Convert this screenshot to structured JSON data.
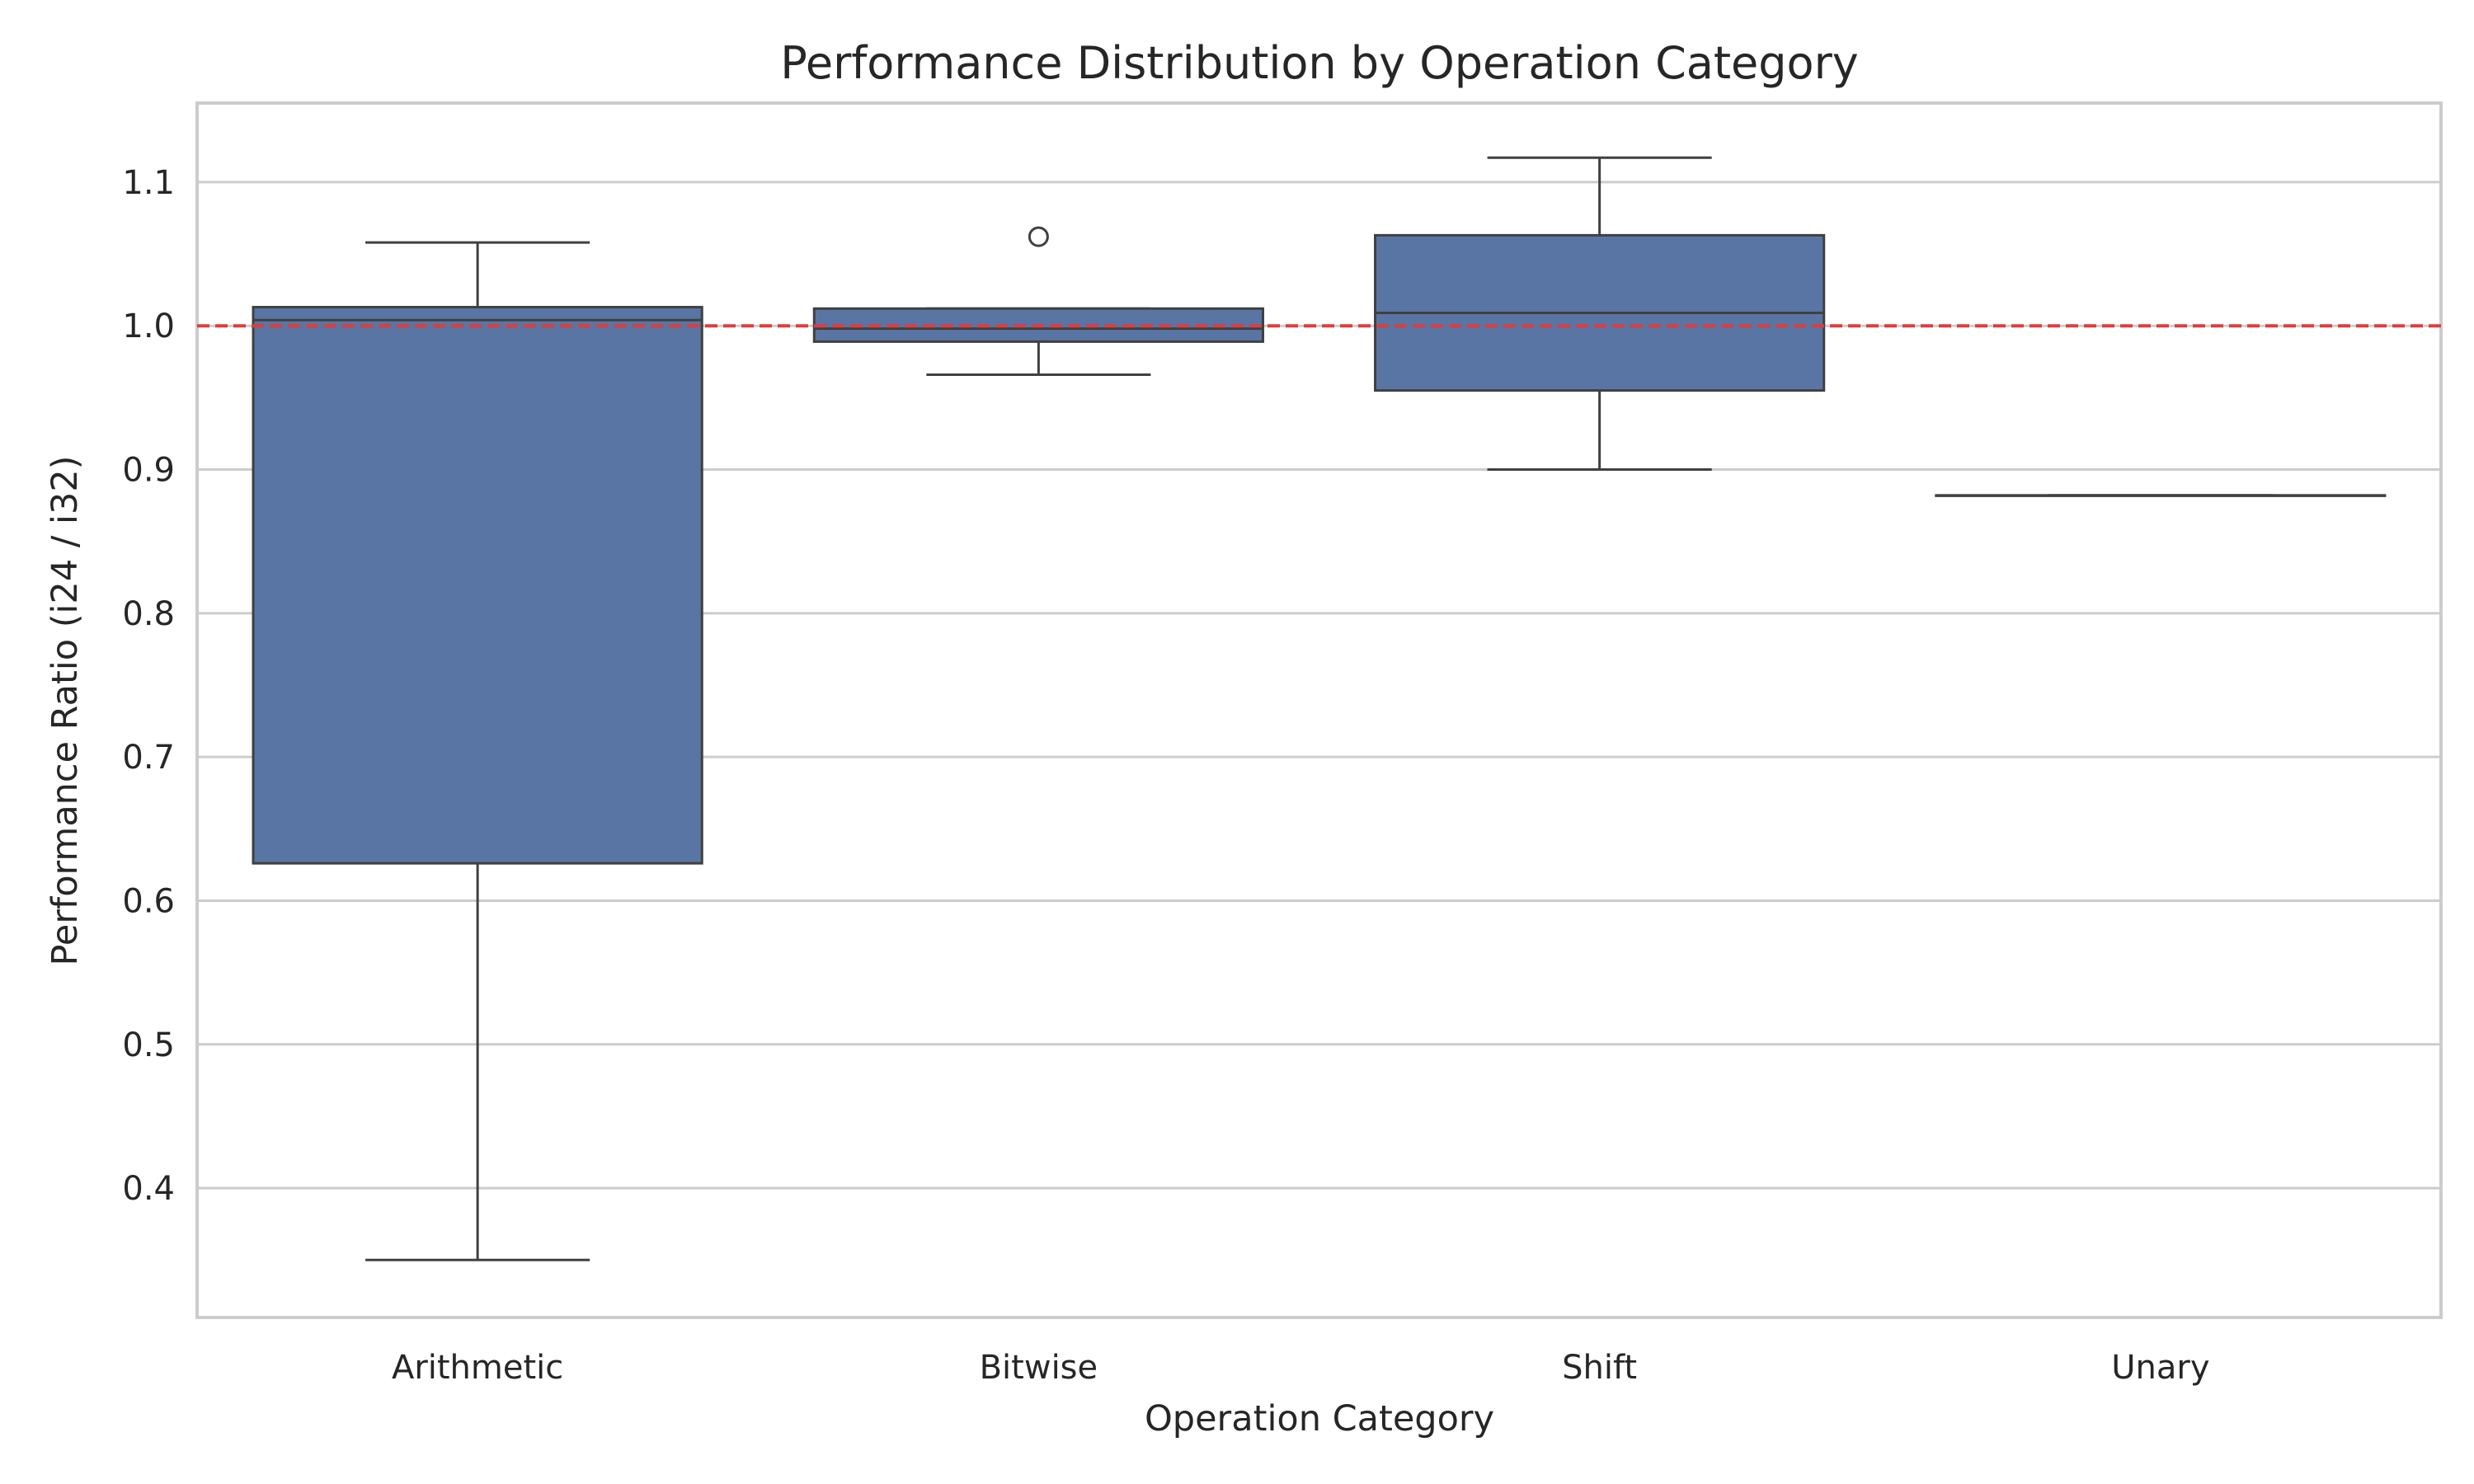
{
  "chart_data": {
    "type": "box",
    "title": "Performance Distribution by Operation Category",
    "xlabel": "Operation Category",
    "ylabel": "Performance Ratio (i24 / i32)",
    "ylim": [
      0.31,
      1.155
    ],
    "yticks": [
      0.4,
      0.5,
      0.6,
      0.7,
      0.8,
      0.9,
      1.0,
      1.1
    ],
    "ytick_labels": [
      "0.4",
      "0.5",
      "0.6",
      "0.7",
      "0.8",
      "0.9",
      "1.0",
      "1.1"
    ],
    "grid": "horizontal",
    "reference_line": {
      "y": 1.0,
      "style": "dashed",
      "color": "#e03c3c"
    },
    "box_color": "#5975a4",
    "line_color": "#404040",
    "categories": [
      "Arithmetic",
      "Bitwise",
      "Shift",
      "Unary"
    ],
    "boxes": [
      {
        "category": "Arithmetic",
        "whisker_low": 0.35,
        "q1": 0.626,
        "median": 1.004,
        "q3": 1.013,
        "whisker_high": 1.058,
        "outliers": []
      },
      {
        "category": "Bitwise",
        "whisker_low": 0.966,
        "q1": 0.989,
        "median": 0.998,
        "q3": 1.012,
        "whisker_high": 1.012,
        "outliers": [
          1.062
        ]
      },
      {
        "category": "Shift",
        "whisker_low": 0.9,
        "q1": 0.955,
        "median": 1.009,
        "q3": 1.063,
        "whisker_high": 1.117,
        "outliers": []
      },
      {
        "category": "Unary",
        "whisker_low": 0.882,
        "q1": 0.882,
        "median": 0.882,
        "q3": 0.882,
        "whisker_high": 0.882,
        "outliers": []
      }
    ]
  }
}
